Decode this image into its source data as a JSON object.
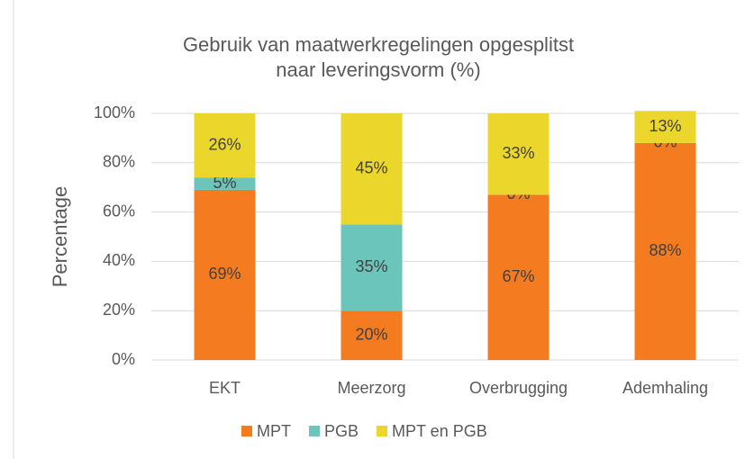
{
  "chart_data": {
    "type": "stacked_bar",
    "title": "Gebruik van maatwerkregelingen opgesplitst naar leveringsvorm (%)",
    "y_label": "Percentage",
    "categories": [
      "EKT",
      "Meerzorg",
      "Overbrugging",
      "Ademhaling"
    ],
    "series": [
      {
        "name": "MPT",
        "color": "#f47b20",
        "values": [
          69,
          20,
          67,
          88
        ],
        "value_labels": [
          "69%",
          "20%",
          "67%",
          "88%"
        ]
      },
      {
        "name": "PGB",
        "color": "#6cc5bb",
        "values": [
          5,
          35,
          0,
          0
        ],
        "value_labels": [
          "5%",
          "35%",
          "0%",
          "0%"
        ]
      },
      {
        "name": "MPT en PGB",
        "color": "#ebd72b",
        "values": [
          26,
          45,
          33,
          13
        ],
        "value_labels": [
          "26%",
          "45%",
          "33%",
          "13%"
        ]
      }
    ],
    "ylim": [
      0,
      100
    ],
    "yticks": [
      {
        "value": 0,
        "label": "0%"
      },
      {
        "value": 20,
        "label": "20%"
      },
      {
        "value": 40,
        "label": "40%"
      },
      {
        "value": 60,
        "label": "60%"
      },
      {
        "value": 80,
        "label": "80%"
      },
      {
        "value": 100,
        "label": "100%"
      }
    ],
    "grid": true,
    "legend": "bottom"
  }
}
